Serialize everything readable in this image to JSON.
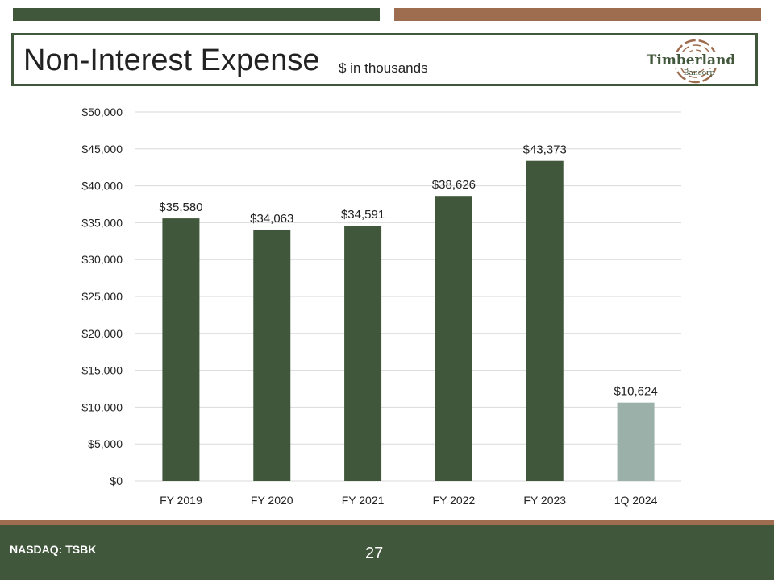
{
  "header": {
    "title": "Non-Interest Expense",
    "subtitle": "$ in thousands",
    "logo_line1": "Timberland",
    "logo_line2": "Bancorp"
  },
  "colors": {
    "bar_primary": "#41573b",
    "bar_latest": "#9bb0a8",
    "accent_brown": "#9e6c4e",
    "gridline": "#d9d9d9"
  },
  "chart_data": {
    "type": "bar",
    "categories": [
      "FY 2019",
      "FY 2020",
      "FY 2021",
      "FY 2022",
      "FY 2023",
      "1Q 2024"
    ],
    "values": [
      35580,
      34063,
      34591,
      38626,
      43373,
      10624
    ],
    "data_labels": [
      "$35,580",
      "$34,063",
      "$34,591",
      "$38,626",
      "$43,373",
      "$10,624"
    ],
    "ylim": [
      0,
      50000
    ],
    "y_ticks": [
      0,
      5000,
      10000,
      15000,
      20000,
      25000,
      30000,
      35000,
      40000,
      45000,
      50000
    ],
    "y_tick_labels": [
      "$0",
      "$5,000",
      "$10,000",
      "$15,000",
      "$20,000",
      "$25,000",
      "$30,000",
      "$35,000",
      "$40,000",
      "$45,000",
      "$50,000"
    ],
    "grid": true
  },
  "footer": {
    "ticker": "NASDAQ: TSBK",
    "page_number": "27"
  }
}
